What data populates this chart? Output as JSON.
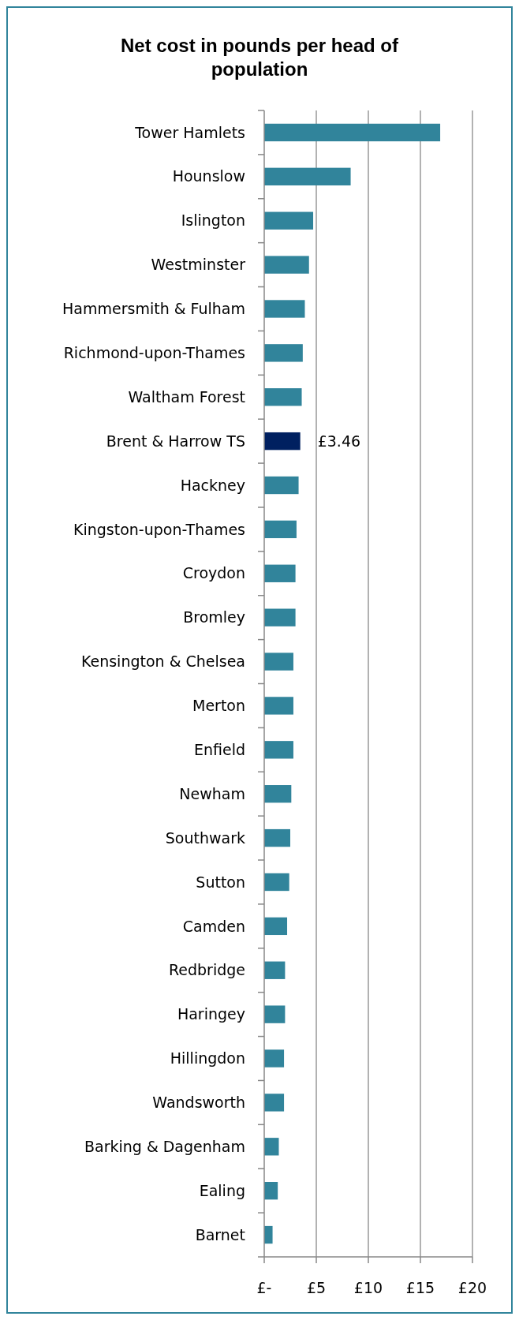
{
  "chart_data": {
    "type": "bar",
    "orientation": "horizontal",
    "title": "Net cost in pounds per head of population",
    "categories": [
      "Tower Hamlets",
      "Hounslow",
      "Islington",
      "Westminster",
      "Hammersmith & Fulham",
      "Richmond-upon-Thames",
      "Waltham Forest",
      "Brent & Harrow TS",
      "Hackney",
      "Kingston-upon-Thames",
      "Croydon",
      "Bromley",
      "Kensington & Chelsea",
      "Merton",
      "Enfield",
      "Newham",
      "Southwark",
      "Sutton",
      "Camden",
      "Redbridge",
      "Haringey",
      "Hillingdon",
      "Wandsworth",
      "Barking & Dagenham",
      "Ealing",
      "Barnet"
    ],
    "values": [
      16.9,
      8.3,
      4.7,
      4.3,
      3.9,
      3.7,
      3.6,
      3.46,
      3.3,
      3.1,
      3.0,
      3.0,
      2.8,
      2.8,
      2.8,
      2.6,
      2.5,
      2.4,
      2.2,
      2.0,
      2.0,
      1.9,
      1.9,
      1.4,
      1.3,
      0.8
    ],
    "colors": [
      "#31849b",
      "#31849b",
      "#31849b",
      "#31849b",
      "#31849b",
      "#31849b",
      "#31849b",
      "#002060",
      "#31849b",
      "#31849b",
      "#31849b",
      "#31849b",
      "#31849b",
      "#31849b",
      "#31849b",
      "#31849b",
      "#31849b",
      "#31849b",
      "#31849b",
      "#31849b",
      "#31849b",
      "#31849b",
      "#31849b",
      "#31849b",
      "#31849b",
      "#31849b"
    ],
    "value_labels": [
      null,
      null,
      null,
      null,
      null,
      null,
      null,
      "£3.46",
      null,
      null,
      null,
      null,
      null,
      null,
      null,
      null,
      null,
      null,
      null,
      null,
      null,
      null,
      null,
      null,
      null,
      null
    ],
    "xlim": [
      0,
      20
    ],
    "xticks": [
      {
        "value": 0,
        "label": "£-"
      },
      {
        "value": 5,
        "label": "£5"
      },
      {
        "value": 10,
        "label": "£10"
      },
      {
        "value": 15,
        "label": "£15"
      },
      {
        "value": 20,
        "label": "£20"
      }
    ],
    "grid": "x"
  }
}
